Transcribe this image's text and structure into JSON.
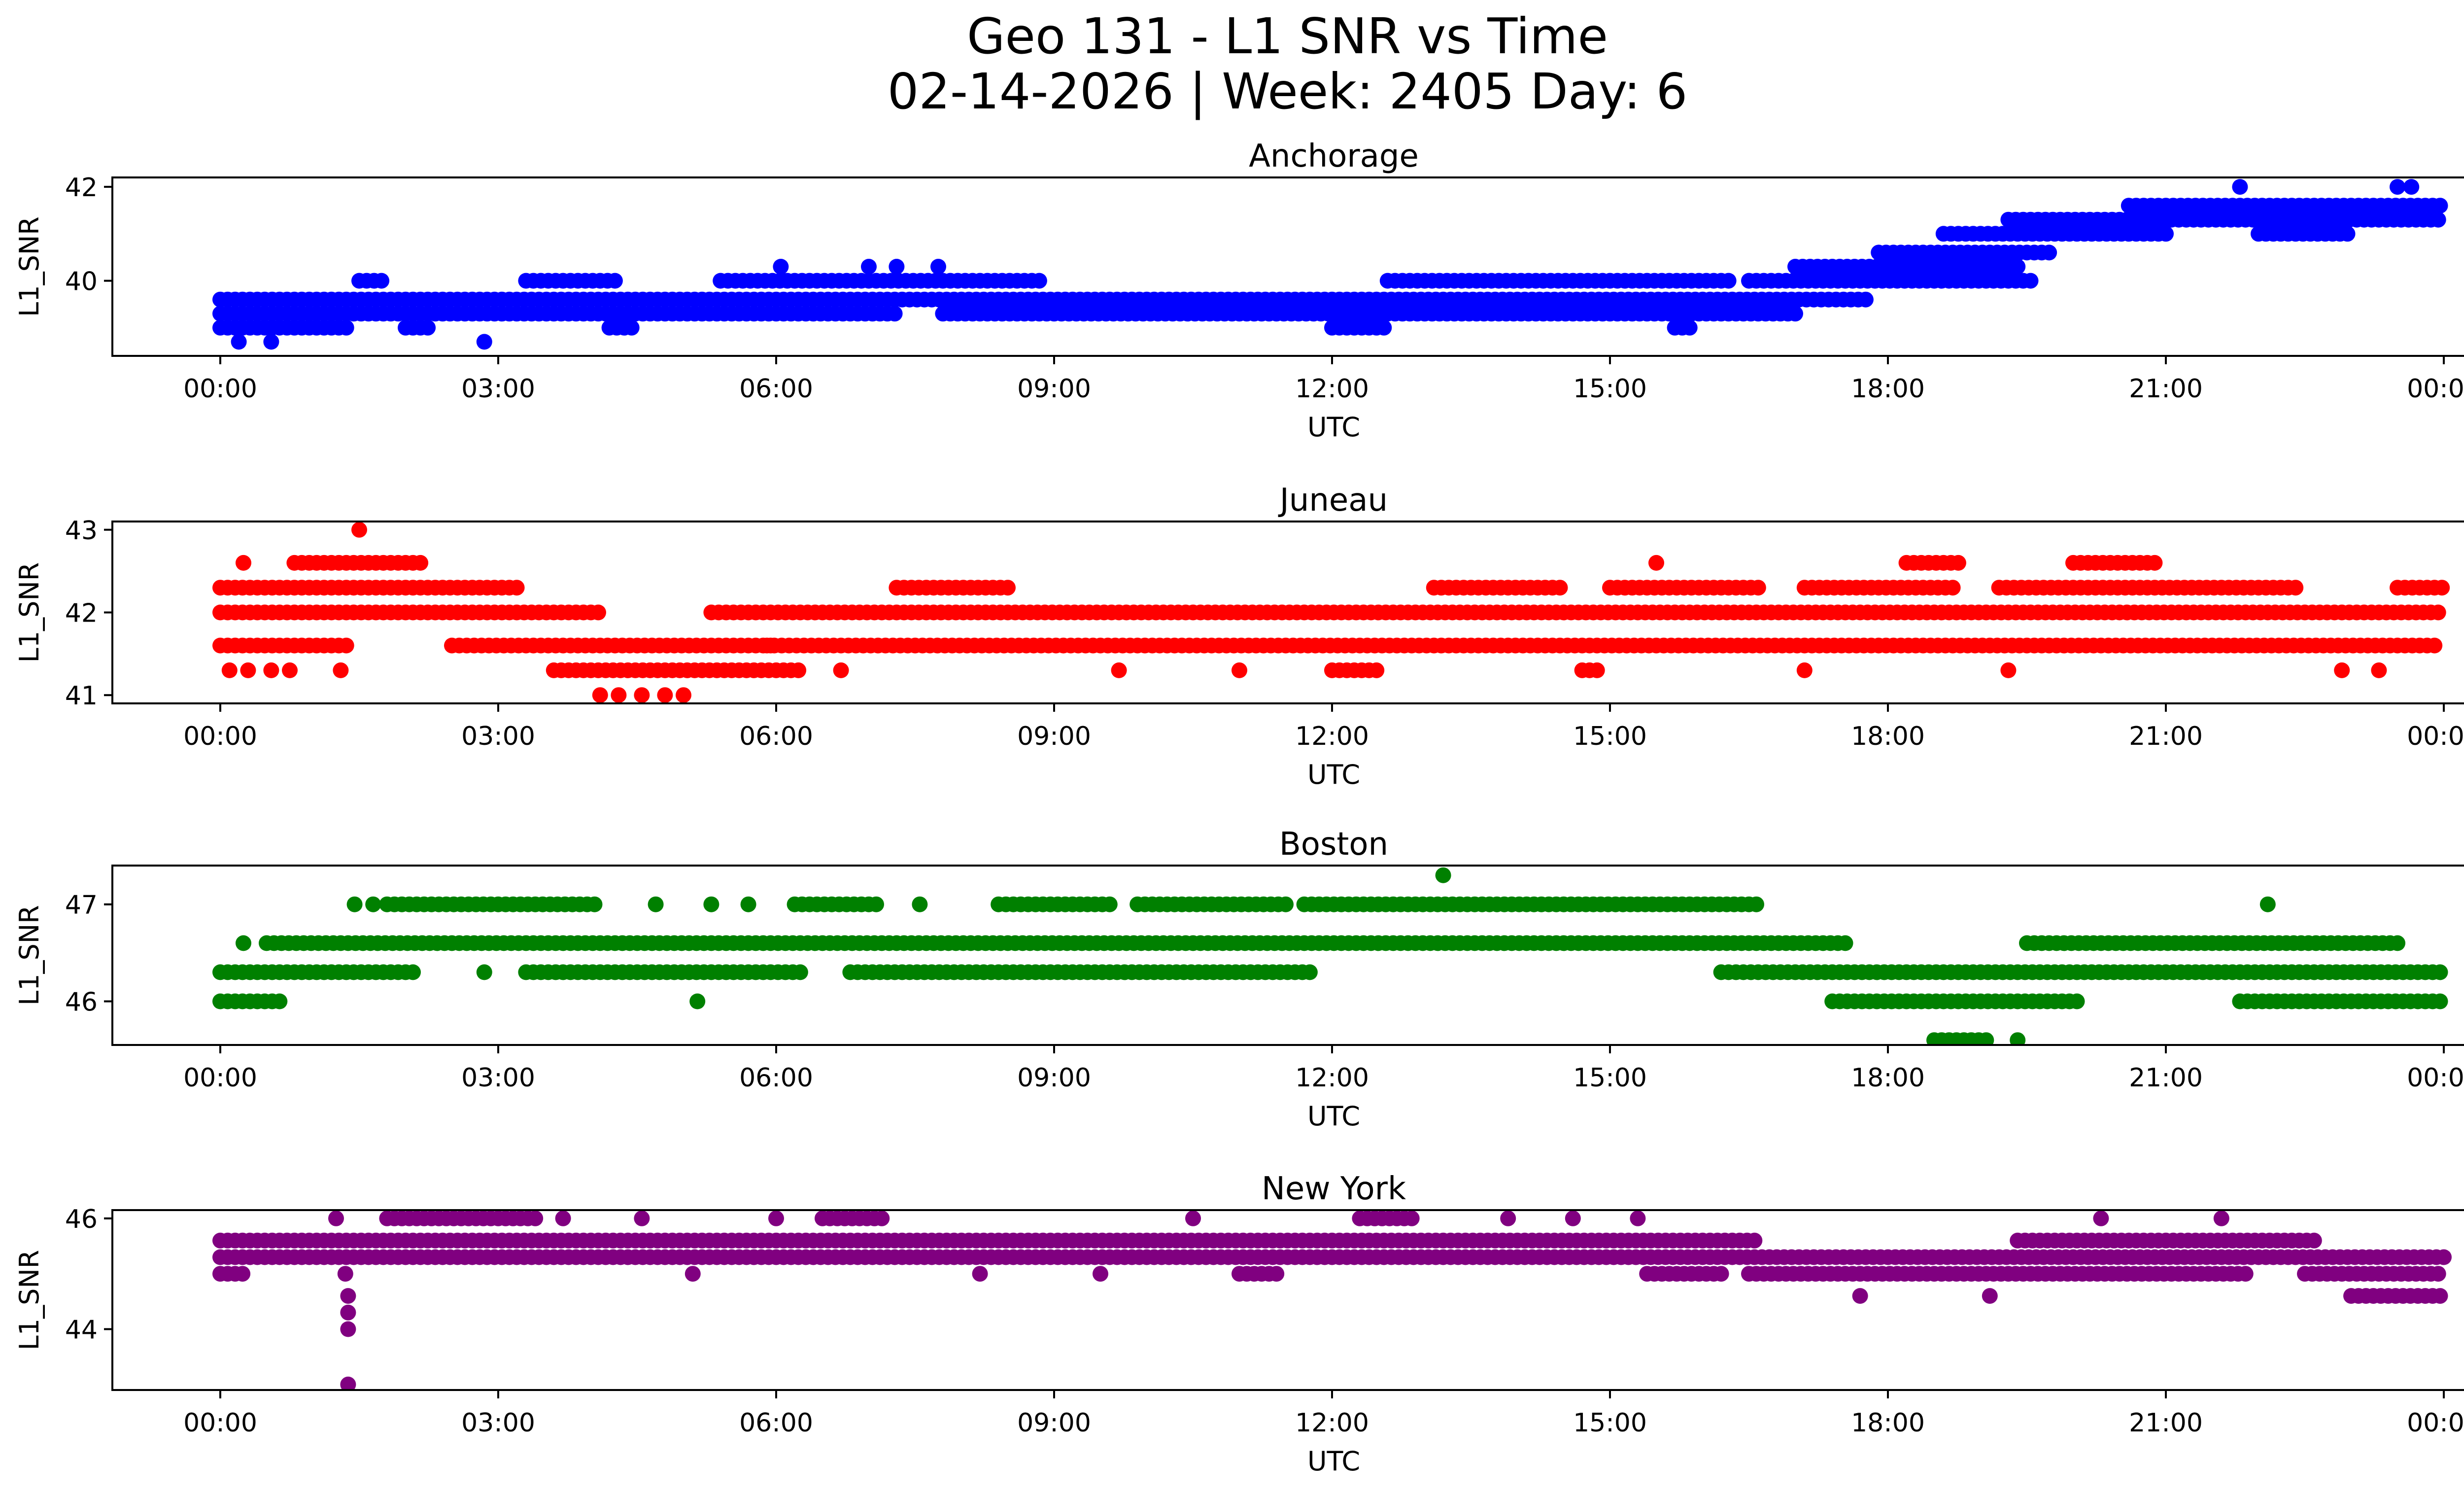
{
  "figure": {
    "title_line1": "Geo 131 - L1 SNR vs Time",
    "title_line2": "02-14-2026 | Week: 2405 Day: 6"
  },
  "chart_data": [
    {
      "type": "scatter",
      "title": "Anchorage",
      "xlabel": "UTC",
      "ylabel": "L1_SNR",
      "color": "#0000ff",
      "x_ticks": [
        "00:00",
        "03:00",
        "06:00",
        "09:00",
        "12:00",
        "15:00",
        "18:00",
        "21:00",
        "00:00"
      ],
      "xlim_hours": [
        -1.2,
        25.2
      ],
      "ylim": [
        38.4,
        42.2
      ],
      "y_ticks": [
        40,
        42
      ],
      "bands": [
        {
          "y": 39.0,
          "segments": [
            [
              0,
              1.4
            ],
            [
              2.0,
              2.3
            ],
            [
              4.2,
              4.5
            ],
            [
              12.0,
              12.6
            ],
            [
              15.7,
              15.9
            ]
          ]
        },
        {
          "y": 39.3,
          "segments": [
            [
              0,
              7.3
            ],
            [
              7.8,
              17.0
            ]
          ]
        },
        {
          "y": 39.6,
          "segments": [
            [
              0,
              17.8
            ]
          ]
        },
        {
          "y": 40.0,
          "segments": [
            [
              1.5,
              1.8
            ],
            [
              3.3,
              4.3
            ],
            [
              5.4,
              8.9
            ],
            [
              12.6,
              16.3
            ],
            [
              16.5,
              19.6
            ]
          ]
        },
        {
          "y": 40.3,
          "segments": [
            [
              17.0,
              19.4
            ]
          ]
        },
        {
          "y": 40.6,
          "segments": [
            [
              17.9,
              19.8
            ]
          ]
        },
        {
          "y": 41.0,
          "segments": [
            [
              18.6,
              21.0
            ],
            [
              22.0,
              23.0
            ]
          ]
        },
        {
          "y": 41.3,
          "segments": [
            [
              19.3,
              24.0
            ]
          ]
        },
        {
          "y": 41.6,
          "segments": [
            [
              20.6,
              24.0
            ]
          ]
        }
      ],
      "outliers": [
        {
          "x": 0.2,
          "y": 38.7
        },
        {
          "x": 0.55,
          "y": 38.7
        },
        {
          "x": 2.85,
          "y": 38.7
        },
        {
          "x": 6.05,
          "y": 40.3
        },
        {
          "x": 7.0,
          "y": 40.3
        },
        {
          "x": 7.3,
          "y": 40.3
        },
        {
          "x": 7.75,
          "y": 40.3
        },
        {
          "x": 21.8,
          "y": 42.0
        },
        {
          "x": 23.5,
          "y": 42.0
        },
        {
          "x": 23.65,
          "y": 42.0
        }
      ]
    },
    {
      "type": "scatter",
      "title": "Juneau",
      "xlabel": "UTC",
      "ylabel": "L1_SNR",
      "color": "#ff0000",
      "x_ticks": [
        "00:00",
        "03:00",
        "06:00",
        "09:00",
        "12:00",
        "15:00",
        "18:00",
        "21:00",
        "00:00"
      ],
      "xlim_hours": [
        -1.2,
        25.2
      ],
      "ylim": [
        40.9,
        43.1
      ],
      "y_ticks": [
        41,
        42,
        43
      ],
      "bands": [
        {
          "y": 41.3,
          "segments": [
            [
              3.6,
              6.3
            ],
            [
              12.0,
              12.5
            ],
            [
              14.7,
              14.9
            ]
          ]
        },
        {
          "y": 41.6,
          "segments": [
            [
              0,
              1.4
            ],
            [
              2.5,
              6.0
            ],
            [
              5.9,
              23.9
            ]
          ]
        },
        {
          "y": 42.0,
          "segments": [
            [
              0,
              4.1
            ],
            [
              5.3,
              24.0
            ]
          ]
        },
        {
          "y": 42.3,
          "segments": [
            [
              0,
              3.2
            ],
            [
              7.3,
              8.5
            ],
            [
              13.1,
              14.5
            ],
            [
              15.0,
              16.6
            ],
            [
              17.1,
              18.7
            ],
            [
              19.2,
              22.4
            ],
            [
              23.5,
              24.0
            ]
          ]
        },
        {
          "y": 42.6,
          "segments": [
            [
              0.8,
              2.2
            ],
            [
              18.2,
              18.8
            ],
            [
              20.0,
              20.9
            ]
          ]
        }
      ],
      "outliers": [
        {
          "x": 0.1,
          "y": 41.3
        },
        {
          "x": 0.3,
          "y": 41.3
        },
        {
          "x": 0.55,
          "y": 41.3
        },
        {
          "x": 0.75,
          "y": 41.3
        },
        {
          "x": 1.3,
          "y": 41.3
        },
        {
          "x": 6.7,
          "y": 41.3
        },
        {
          "x": 9.7,
          "y": 41.3
        },
        {
          "x": 11.0,
          "y": 41.3
        },
        {
          "x": 17.1,
          "y": 41.3
        },
        {
          "x": 19.3,
          "y": 41.3
        },
        {
          "x": 22.9,
          "y": 41.3
        },
        {
          "x": 23.3,
          "y": 41.3
        },
        {
          "x": 1.5,
          "y": 43.0
        },
        {
          "x": 4.1,
          "y": 41.0
        },
        {
          "x": 4.3,
          "y": 41.0
        },
        {
          "x": 4.55,
          "y": 41.0
        },
        {
          "x": 4.8,
          "y": 41.0
        },
        {
          "x": 5.0,
          "y": 41.0
        },
        {
          "x": 0.25,
          "y": 42.6
        },
        {
          "x": 15.5,
          "y": 42.6
        }
      ]
    },
    {
      "type": "scatter",
      "title": "Boston",
      "xlabel": "UTC",
      "ylabel": "L1_SNR",
      "color": "#008000",
      "x_ticks": [
        "00:00",
        "03:00",
        "06:00",
        "09:00",
        "12:00",
        "15:00",
        "18:00",
        "21:00",
        "00:00"
      ],
      "xlim_hours": [
        -1.2,
        25.2
      ],
      "ylim": [
        45.55,
        47.4
      ],
      "y_ticks": [
        46,
        47
      ],
      "bands": [
        {
          "y": 46.0,
          "segments": [
            [
              0,
              0.7
            ],
            [
              17.4,
              20.1
            ],
            [
              21.8,
              24.0
            ]
          ]
        },
        {
          "y": 46.3,
          "segments": [
            [
              0,
              2.1
            ],
            [
              3.3,
              6.3
            ],
            [
              6.8,
              11.8
            ],
            [
              16.2,
              24.0
            ]
          ]
        },
        {
          "y": 46.6,
          "segments": [
            [
              0.5,
              17.6
            ],
            [
              19.5,
              23.5
            ]
          ]
        },
        {
          "y": 47.0,
          "segments": [
            [
              1.8,
              4.1
            ],
            [
              6.2,
              7.1
            ],
            [
              8.4,
              9.6
            ],
            [
              9.9,
              11.5
            ],
            [
              11.7,
              16.6
            ]
          ]
        },
        {
          "y": 45.6,
          "segments": [
            [
              18.5,
              19.1
            ]
          ]
        }
      ],
      "outliers": [
        {
          "x": 0.25,
          "y": 46.6
        },
        {
          "x": 1.45,
          "y": 47.0
        },
        {
          "x": 1.65,
          "y": 47.0
        },
        {
          "x": 2.85,
          "y": 46.3
        },
        {
          "x": 4.7,
          "y": 47.0
        },
        {
          "x": 5.3,
          "y": 47.0
        },
        {
          "x": 5.7,
          "y": 47.0
        },
        {
          "x": 5.15,
          "y": 46.0
        },
        {
          "x": 7.55,
          "y": 47.0
        },
        {
          "x": 13.2,
          "y": 47.3
        },
        {
          "x": 22.1,
          "y": 47.0
        },
        {
          "x": 19.4,
          "y": 45.6
        }
      ]
    },
    {
      "type": "scatter",
      "title": "New York",
      "xlabel": "UTC",
      "ylabel": "L1_SNR",
      "color": "#800080",
      "x_ticks": [
        "00:00",
        "03:00",
        "06:00",
        "09:00",
        "12:00",
        "15:00",
        "18:00",
        "21:00",
        "00:00"
      ],
      "xlim_hours": [
        -1.2,
        25.2
      ],
      "ylim": [
        42.9,
        46.15
      ],
      "y_ticks": [
        44,
        46
      ],
      "bands": [
        {
          "y": 45.0,
          "segments": [
            [
              0,
              0.3
            ],
            [
              11.0,
              11.4
            ],
            [
              15.4,
              16.2
            ],
            [
              16.5,
              21.9
            ],
            [
              22.5,
              24.0
            ]
          ]
        },
        {
          "y": 45.3,
          "segments": [
            [
              0,
              24.0
            ]
          ]
        },
        {
          "y": 45.6,
          "segments": [
            [
              0,
              16.6
            ],
            [
              19.4,
              22.6
            ]
          ]
        },
        {
          "y": 46.0,
          "segments": [
            [
              1.8,
              3.4
            ],
            [
              6.5,
              7.2
            ],
            [
              12.3,
              12.9
            ]
          ]
        },
        {
          "y": 44.6,
          "segments": [
            [
              23.0,
              24.0
            ]
          ]
        }
      ],
      "outliers": [
        {
          "x": 1.35,
          "y": 45.0
        },
        {
          "x": 1.38,
          "y": 44.6
        },
        {
          "x": 1.38,
          "y": 44.3
        },
        {
          "x": 1.38,
          "y": 44.0
        },
        {
          "x": 1.38,
          "y": 43.0
        },
        {
          "x": 1.25,
          "y": 46.0
        },
        {
          "x": 3.7,
          "y": 46.0
        },
        {
          "x": 4.55,
          "y": 46.0
        },
        {
          "x": 6.0,
          "y": 46.0
        },
        {
          "x": 10.5,
          "y": 46.0
        },
        {
          "x": 13.9,
          "y": 46.0
        },
        {
          "x": 14.6,
          "y": 46.0
        },
        {
          "x": 15.3,
          "y": 46.0
        },
        {
          "x": 17.7,
          "y": 44.6
        },
        {
          "x": 19.1,
          "y": 44.6
        },
        {
          "x": 20.3,
          "y": 46.0
        },
        {
          "x": 21.6,
          "y": 46.0
        },
        {
          "x": 5.1,
          "y": 45.0
        },
        {
          "x": 8.2,
          "y": 45.0
        },
        {
          "x": 9.5,
          "y": 45.0
        }
      ]
    }
  ]
}
